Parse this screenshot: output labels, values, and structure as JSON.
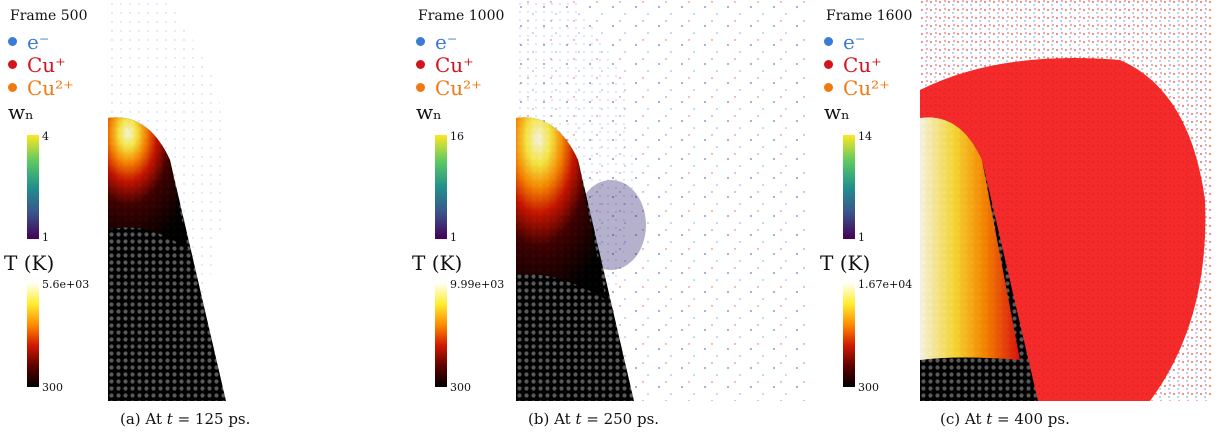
{
  "legend": {
    "electron": {
      "label": "e⁻",
      "color": "#3a7bd5"
    },
    "cu1": {
      "label": "Cu⁺",
      "color": "#d4141c"
    },
    "cu2": {
      "label": "Cu²⁺",
      "color": "#f07a12"
    }
  },
  "wn_label": "wₙ",
  "t_label": "T (K)",
  "panels": [
    {
      "frame": "Frame 500",
      "wn_max": "4",
      "wn_min": "1",
      "t_max": "5.6e+03",
      "t_min": "300",
      "caption_prefix": "(a) At ",
      "caption_var": "t",
      "caption_suffix": " = 125 ps."
    },
    {
      "frame": "Frame 1000",
      "wn_max": "16",
      "wn_min": "1",
      "t_max": "9.99e+03",
      "t_min": "300",
      "caption_prefix": "(b) At ",
      "caption_var": "t",
      "caption_suffix": " = 250 ps."
    },
    {
      "frame": "Frame 1600",
      "wn_max": "14",
      "wn_min": "1",
      "t_max": "1.67e+04",
      "t_min": "300",
      "caption_prefix": "(c) At ",
      "caption_var": "t",
      "caption_suffix": " = 400 ps."
    }
  ]
}
